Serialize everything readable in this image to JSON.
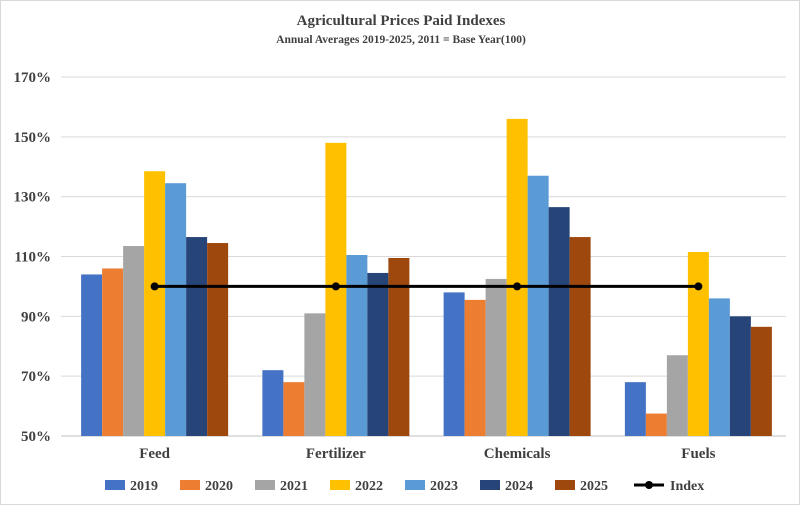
{
  "chart_data": {
    "type": "bar",
    "title": "Agricultural Prices Paid Indexes",
    "subtitle": "Annual Averages 2019-2025, 2011 = Base Year(100)",
    "categories": [
      "Feed",
      "Fertilizer",
      "Chemicals",
      "Fuels"
    ],
    "ylim": [
      50,
      170
    ],
    "yticks": [
      50,
      70,
      90,
      110,
      130,
      150,
      170
    ],
    "ytick_labels": [
      "50%",
      "70%",
      "90%",
      "110%",
      "130%",
      "150%",
      "170%"
    ],
    "grid": true,
    "legend_position": "bottom",
    "series": [
      {
        "name": "2019",
        "color": "#4472c4",
        "values": [
          104,
          72,
          98,
          68
        ]
      },
      {
        "name": "2020",
        "color": "#ed7d31",
        "values": [
          106,
          68,
          95.5,
          57.5
        ]
      },
      {
        "name": "2021",
        "color": "#a5a5a5",
        "values": [
          113.5,
          91,
          102.5,
          77
        ]
      },
      {
        "name": "2022",
        "color": "#ffc000",
        "values": [
          138.5,
          148,
          156,
          111.5
        ]
      },
      {
        "name": "2023",
        "color": "#5b9bd5",
        "values": [
          134.5,
          110.5,
          137,
          96
        ]
      },
      {
        "name": "2024",
        "color": "#264478",
        "values": [
          116.5,
          104.5,
          126.5,
          90
        ]
      },
      {
        "name": "2025",
        "color": "#9e480e",
        "values": [
          114.5,
          109.5,
          116.5,
          86.5
        ]
      }
    ],
    "line_series": {
      "name": "Index",
      "color": "#000000",
      "values": [
        100,
        100,
        100,
        100
      ]
    }
  }
}
